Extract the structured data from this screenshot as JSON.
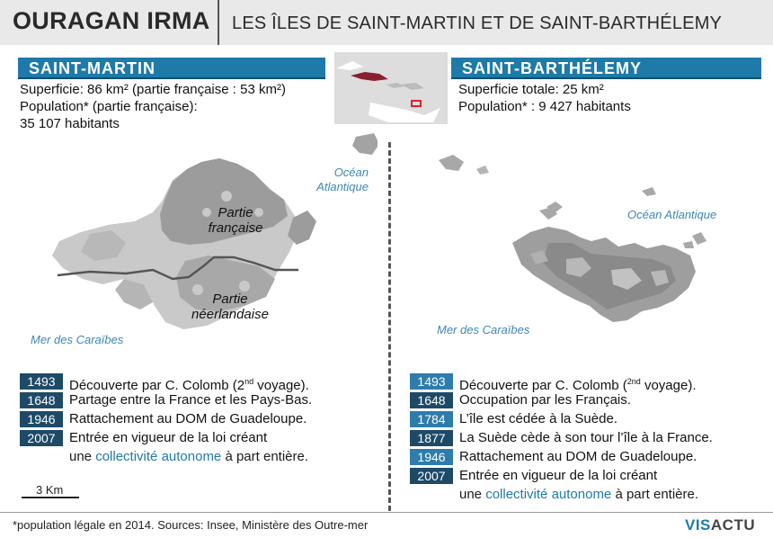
{
  "header": {
    "title": "OURAGAN IRMA",
    "subtitle": "LES ÎLES DE SAINT-MARTIN ET DE SAINT-BARTHÉLEMY"
  },
  "saint_martin": {
    "name": "SAINT-MARTIN",
    "stats": {
      "line1": "Superficie: 86 km² (partie française : 53 km²)",
      "line2": "Population* (partie française):",
      "line3": "35 107 habitants"
    },
    "map_labels": {
      "ocean_line1": "Océan",
      "ocean_line2": "Atlantique",
      "sea": "Mer des Caraïbes",
      "french_line1": "Partie",
      "french_line2": "française",
      "dutch_line1": "Partie",
      "dutch_line2": "néerlandaise"
    },
    "scale": "3 Km",
    "timeline": [
      {
        "year": "1493",
        "event": "Découverte par C. Colomb (2nd voyage)."
      },
      {
        "year": "1648",
        "event": "Partage entre la France et les Pays-Bas."
      },
      {
        "year": "1946",
        "event": "Rattachement au DOM de Guadeloupe."
      },
      {
        "year": "2007",
        "event": "Entrée en vigueur de la loi créant"
      }
    ],
    "continuation": {
      "pre": "une ",
      "highlight": "collectivité autonome",
      "post": " à part entière."
    }
  },
  "saint_barthelemy": {
    "name": "SAINT-BARTHÉLEMY",
    "stats": {
      "line1": "Superficie totale: 25 km²",
      "line2": "Population* : 9 427 habitants"
    },
    "map_labels": {
      "ocean": "Océan Atlantique",
      "sea": "Mer des Caraïbes"
    },
    "timeline": [
      {
        "year": "1493",
        "event": "Découverte par C. Colomb (2nd voyage)."
      },
      {
        "year": "1648",
        "event": "Occupation par les Français."
      },
      {
        "year": "1784",
        "event": "L’île est cédée à la Suède."
      },
      {
        "year": "1877",
        "event": "La Suède cède à son tour l’île à la France."
      },
      {
        "year": "1946",
        "event": "Rattachement au DOM de Guadeloupe."
      },
      {
        "year": "2007",
        "event": "Entrée en vigueur de la loi créant"
      }
    ],
    "continuation": {
      "pre": "une ",
      "highlight": "collectivité autonome",
      "post": " à part entière."
    }
  },
  "footer": {
    "note": "*population légale en 2014. Sources: Insee, Ministère des Outre-mer",
    "logo_part1": "VIS",
    "logo_part2": "ACTU"
  },
  "colors": {
    "band": "#1e7aa8",
    "year_dark": "#1e4a68",
    "year_light": "#2e7cab",
    "ocean_text": "#3d86b5",
    "land_dark": "#9a9a9a",
    "land_light": "#c8c8c8"
  }
}
